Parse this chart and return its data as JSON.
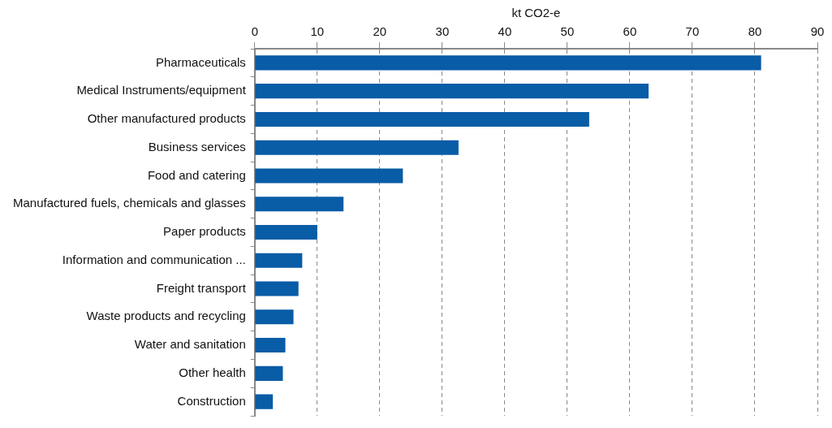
{
  "chart_data": {
    "type": "bar",
    "orientation": "horizontal",
    "xlabel": "kt CO2-e",
    "categories": [
      "Pharmaceuticals",
      "Medical Instruments/equipment",
      "Other manufactured products",
      "Business services",
      "Food and catering",
      "Manufactured fuels, chemicals and glasses",
      "Paper products",
      "Information and communication ...",
      "Freight transport",
      "Waste products and recycling",
      "Water and sanitation",
      "Other health",
      "Construction"
    ],
    "values": [
      81,
      63,
      53.5,
      32.6,
      23.7,
      14.2,
      10,
      7.6,
      7,
      6.2,
      4.9,
      4.5,
      2.9
    ],
    "color": "#095ca6",
    "xlim": [
      0,
      90
    ],
    "xticks": [
      0,
      10,
      20,
      30,
      40,
      50,
      60,
      70,
      80,
      90
    ],
    "grid": "x"
  }
}
